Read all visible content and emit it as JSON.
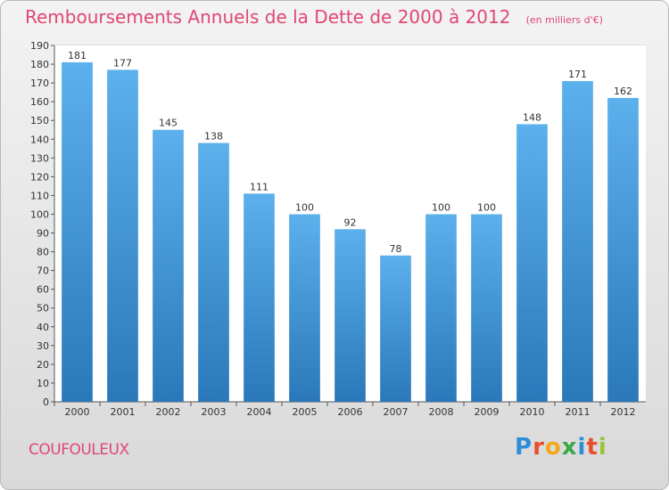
{
  "header": {
    "title": "Remboursements Annuels de la Dette de 2000 à 2012",
    "unit": "(en milliers d'€)"
  },
  "footer": {
    "commune": "COUFOULEUX",
    "logo": "Proxiti",
    "logo_letters": [
      "P",
      "r",
      "o",
      "x",
      "i",
      "t",
      "i"
    ]
  },
  "colors": {
    "title": "#df4774",
    "bar_light": "#5cb0ec",
    "bar_dark": "#2a78b9",
    "grid": "#cccccc"
  },
  "chart_data": {
    "type": "bar",
    "title": "Remboursements Annuels de la Dette de 2000 à 2012",
    "xlabel": "",
    "ylabel": "",
    "categories": [
      "2000",
      "2001",
      "2002",
      "2003",
      "2004",
      "2005",
      "2006",
      "2007",
      "2008",
      "2009",
      "2010",
      "2011",
      "2012"
    ],
    "values": [
      181,
      177,
      145,
      138,
      111,
      100,
      92,
      78,
      100,
      100,
      148,
      171,
      162
    ],
    "ylim": [
      0,
      190
    ],
    "yticks": [
      0,
      10,
      20,
      30,
      40,
      50,
      60,
      70,
      80,
      90,
      100,
      110,
      120,
      130,
      140,
      150,
      160,
      170,
      180,
      190
    ],
    "grid": true,
    "legend": "none"
  }
}
